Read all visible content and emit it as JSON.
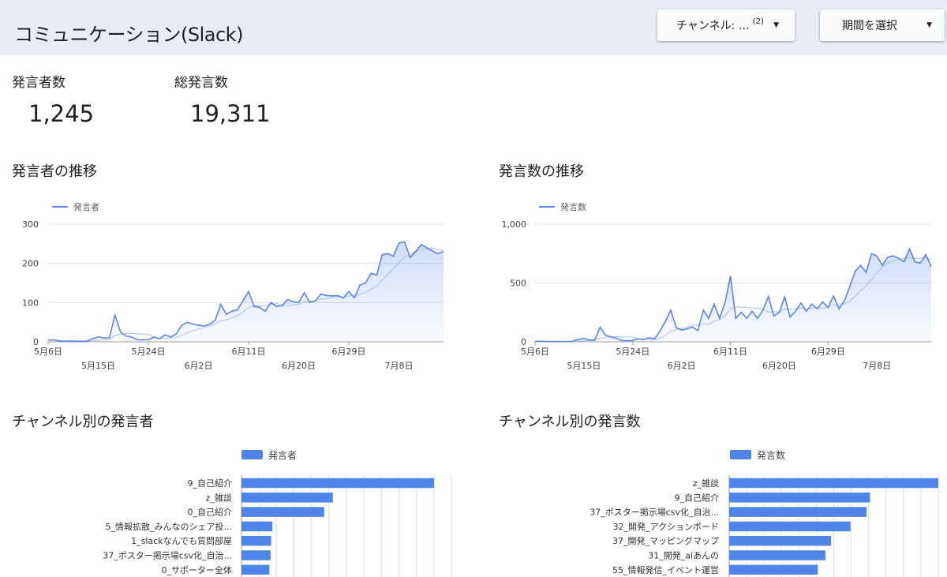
{
  "header": {
    "title": "コミュニケーション(Slack)",
    "channel_filter": {
      "label": "チャンネル: …",
      "count": "(2)"
    },
    "period_filter": {
      "label": "期間を選択"
    }
  },
  "kpis": {
    "speakers": {
      "label": "発言者数",
      "value": "1,245"
    },
    "messages": {
      "label": "総発言数",
      "value": "19,311"
    }
  },
  "colors": {
    "series": "#5b86e5",
    "bar": "#4f84e8",
    "grid": "#e0e0e0",
    "axis": "#9e9e9e"
  },
  "chart_data": [
    {
      "type": "line",
      "title": "発言者の推移",
      "legend": "発言者",
      "ylim": [
        0,
        300
      ],
      "yticks": [
        "0",
        "100",
        "200",
        "300"
      ],
      "xticks_top": [
        "5月6日",
        "5月24日",
        "6月11日",
        "6月29日"
      ],
      "xticks_bottom": [
        "5月15日",
        "6月2日",
        "6月20日",
        "7月8日"
      ],
      "start_date": "5月6日",
      "series": [
        {
          "name": "発言者",
          "values": [
            4,
            5,
            2,
            1,
            2,
            1,
            1,
            2,
            8,
            12,
            10,
            10,
            68,
            25,
            15,
            12,
            5,
            5,
            5,
            12,
            8,
            18,
            12,
            20,
            42,
            50,
            45,
            42,
            40,
            45,
            55,
            95,
            70,
            78,
            82,
            105,
            128,
            90,
            88,
            78,
            100,
            90,
            92,
            108,
            102,
            100,
            125,
            100,
            105,
            122,
            118,
            117,
            118,
            112,
            128,
            112,
            145,
            150,
            175,
            170,
            222,
            225,
            218,
            252,
            255,
            215,
            230,
            248,
            240,
            232,
            225,
            230
          ]
        }
      ]
    },
    {
      "type": "line",
      "title": "発言数の推移",
      "legend": "発言数",
      "ylim": [
        0,
        1000
      ],
      "yticks": [
        "0",
        "500",
        "1,000"
      ],
      "xticks_top": [
        "5月6日",
        "5月24日",
        "6月11日",
        "6月29日"
      ],
      "xticks_bottom": [
        "5月15日",
        "6月2日",
        "6月20日",
        "7月8日"
      ],
      "start_date": "5月6日",
      "series": [
        {
          "name": "発言数",
          "values": [
            5,
            5,
            3,
            2,
            3,
            2,
            2,
            5,
            20,
            28,
            15,
            15,
            125,
            55,
            40,
            30,
            10,
            10,
            10,
            25,
            18,
            35,
            25,
            90,
            170,
            270,
            120,
            100,
            110,
            125,
            95,
            270,
            200,
            320,
            200,
            330,
            560,
            200,
            250,
            200,
            260,
            200,
            270,
            385,
            220,
            250,
            380,
            210,
            260,
            330,
            260,
            320,
            280,
            340,
            290,
            390,
            280,
            350,
            470,
            600,
            650,
            590,
            750,
            730,
            650,
            720,
            730,
            710,
            680,
            790,
            680,
            670,
            740,
            640
          ]
        }
      ]
    },
    {
      "type": "bar",
      "title": "チャンネル別の発言者",
      "legend": "発言者",
      "categories": [
        "9_自己紹介",
        "z_雑談",
        "0_自己紹介",
        "5_情報拡散_みんなのシェア投...",
        "1_slackなんでも質問部屋",
        "37_ポスター掲示場csv化_自治...",
        "0_サポーター全体"
      ],
      "values": [
        780,
        370,
        335,
        125,
        120,
        118,
        113
      ],
      "xlim": [
        0,
        850
      ]
    },
    {
      "type": "bar",
      "title": "チャンネル別の発言数",
      "legend": "発言数",
      "categories": [
        "z_雑談",
        "9_自己紹介",
        "37_ポスター掲示場csv化_自治...",
        "32_開発_アクションボード",
        "37_開発_マッピングマップ",
        "31_開発_aiあんの",
        "55_情報発信_イベント運営"
      ],
      "values": [
        3000,
        2020,
        1970,
        1740,
        1460,
        1380,
        1270
      ],
      "xlim": [
        0,
        3000
      ]
    }
  ]
}
